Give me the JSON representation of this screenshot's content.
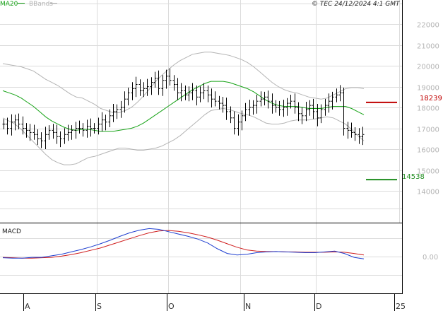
{
  "header": {
    "legend_ma": "MA20",
    "legend_bb": "BBands",
    "copyright": "© TEC 24/12/2024 4:1 GMT"
  },
  "colors": {
    "candles": "#000000",
    "ma20": "#17a317",
    "bbands": "#b4b4b4",
    "grid": "#dcdcdc",
    "resistance": "#c00000",
    "support": "#1e8c1e",
    "macd": "#1f3fd0",
    "signal": "#d01f1f"
  },
  "chart_data": [
    {
      "type": "ohlc",
      "title": "",
      "x_labels": [
        "A",
        "S",
        "O",
        "N",
        "D",
        "25"
      ],
      "y_ticks": [
        14000,
        15000,
        16000,
        17000,
        18000,
        19000,
        20000,
        21000,
        22000
      ],
      "y_tick_labels": [
        "14000",
        "15000",
        "16000",
        "17000",
        "18000",
        "19000",
        "20000",
        "21000",
        "22000"
      ],
      "ylim": [
        12500,
        22500
      ],
      "grid": true,
      "legend": "top-left",
      "series": [
        {
          "name": "MA20",
          "values": [
            18800,
            18700,
            18600,
            18450,
            18250,
            18050,
            17800,
            17550,
            17350,
            17200,
            17050,
            16950,
            16900,
            16950,
            16950,
            16900,
            16850,
            16850,
            16850,
            16900,
            16950,
            17000,
            17100,
            17250,
            17450,
            17650,
            17850,
            18050,
            18250,
            18450,
            18650,
            18850,
            19000,
            19150,
            19250,
            19250,
            19250,
            19200,
            19100,
            19000,
            18900,
            18750,
            18550,
            18350,
            18200,
            18100,
            18050,
            18050,
            18050,
            18000,
            17950,
            17950,
            17950,
            18000,
            18050,
            18050,
            18050,
            17950,
            17800,
            17650
          ]
        },
        {
          "name": "BBands",
          "values": []
        }
      ],
      "annotations": [
        {
          "label": "18239",
          "value": 18239
        },
        {
          "label": "14538",
          "value": 14538
        }
      ]
    },
    {
      "type": "line",
      "title": "MACD",
      "y_tick_labels": [
        "0.00"
      ],
      "series": [
        {
          "name": "",
          "values": []
        }
      ]
    }
  ]
}
